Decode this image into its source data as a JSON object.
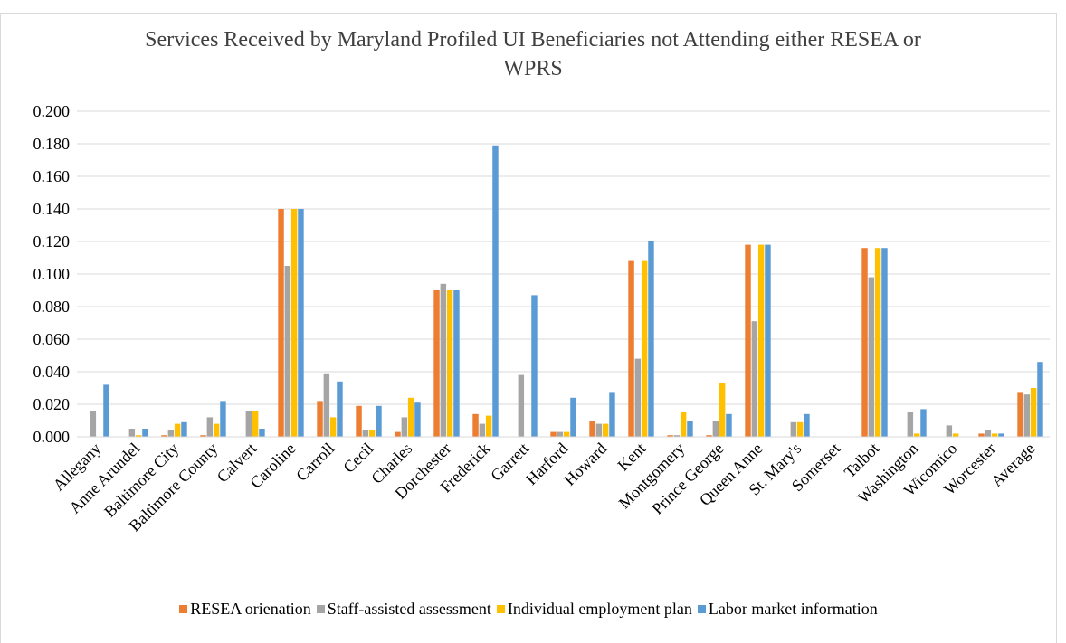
{
  "chart_data": {
    "type": "bar",
    "title": "Services Received by Maryland Profiled UI Beneficiaries not Attending either RESEA or WPRS",
    "categories": [
      "Allegany",
      "Anne Arundel",
      "Baltimore City",
      "Baltimore County",
      "Calvert",
      "Caroline",
      "Carroll",
      "Cecil",
      "Charles",
      "Dorchester",
      "Frederick",
      "Garrett",
      "Harford",
      "Howard",
      "Kent",
      "Montgomery",
      "Prince George",
      "Queen Anne",
      "St. Mary's",
      "Somerset",
      "Talbot",
      "Washington",
      "Wicomico",
      "Worcester",
      "Average"
    ],
    "series": [
      {
        "name": "RESEA orienation",
        "color": "#ED7D31",
        "values": [
          0,
          0,
          0.001,
          0.001,
          0,
          0.14,
          0.022,
          0.019,
          0.003,
          0.09,
          0.014,
          0,
          0.003,
          0.01,
          0.108,
          0.001,
          0.001,
          0.118,
          0,
          0,
          0.116,
          0,
          0,
          0.002,
          0.027
        ]
      },
      {
        "name": "Staff-assisted assessment",
        "color": "#A5A5A5",
        "values": [
          0.016,
          0.005,
          0.004,
          0.012,
          0.016,
          0.105,
          0.039,
          0.004,
          0.012,
          0.094,
          0.008,
          0.038,
          0.003,
          0.008,
          0.048,
          0.001,
          0.01,
          0.071,
          0.009,
          0,
          0.098,
          0.015,
          0.007,
          0.004,
          0.026
        ]
      },
      {
        "name": "Individual employment plan",
        "color": "#FFC000",
        "values": [
          0,
          0.001,
          0.008,
          0.008,
          0.016,
          0.14,
          0.012,
          0.004,
          0.024,
          0.09,
          0.013,
          0,
          0.003,
          0.008,
          0.108,
          0.015,
          0.033,
          0.118,
          0.009,
          0,
          0.116,
          0.002,
          0.002,
          0.002,
          0.03
        ]
      },
      {
        "name": "Labor market information",
        "color": "#5B9BD5",
        "values": [
          0.032,
          0.005,
          0.009,
          0.022,
          0.005,
          0.14,
          0.034,
          0.019,
          0.021,
          0.09,
          0.179,
          0.087,
          0.024,
          0.027,
          0.12,
          0.01,
          0.014,
          0.118,
          0.014,
          0,
          0.116,
          0.017,
          0,
          0.002,
          0.046
        ]
      }
    ],
    "ylim": [
      0,
      0.2
    ],
    "yticks": [
      {
        "value": 0,
        "label": "0.000"
      },
      {
        "value": 0.02,
        "label": "0.020"
      },
      {
        "value": 0.04,
        "label": "0.040"
      },
      {
        "value": 0.06,
        "label": "0.060"
      },
      {
        "value": 0.08,
        "label": "0.080"
      },
      {
        "value": 0.1,
        "label": "0.100"
      },
      {
        "value": 0.12,
        "label": "0.120"
      },
      {
        "value": 0.14,
        "label": "0.140"
      },
      {
        "value": 0.16,
        "label": "0.160"
      },
      {
        "value": 0.18,
        "label": "0.180"
      },
      {
        "value": 0.2,
        "label": "0.200"
      }
    ],
    "grid": true,
    "legend": "bottom"
  }
}
